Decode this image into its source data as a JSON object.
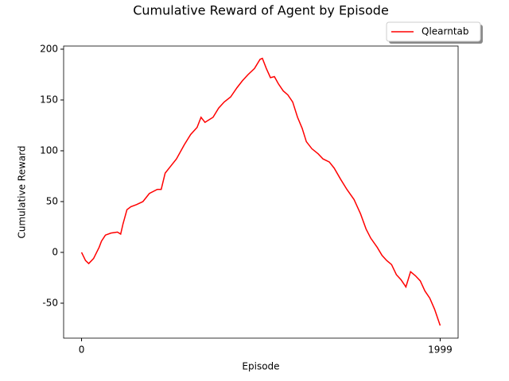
{
  "chart_data": {
    "type": "line",
    "title": "Cumulative Reward of Agent by Episode",
    "xlabel": "Episode",
    "ylabel": "Cumulative Reward",
    "x": [
      0,
      22,
      40,
      67,
      84,
      98,
      111,
      133,
      164,
      200,
      218,
      231,
      253,
      275,
      306,
      342,
      378,
      422,
      444,
      466,
      493,
      529,
      573,
      608,
      644,
      666,
      688,
      733,
      764,
      795,
      831,
      866,
      897,
      928,
      964,
      995,
      1008,
      1030,
      1053,
      1075,
      1097,
      1124,
      1150,
      1177,
      1204,
      1230,
      1253,
      1284,
      1319,
      1346,
      1381,
      1408,
      1444,
      1479,
      1519,
      1555,
      1586,
      1612,
      1648,
      1675,
      1701,
      1728,
      1755,
      1781,
      1808,
      1834,
      1861,
      1888,
      1914,
      1941,
      1968,
      1999
    ],
    "series": [
      {
        "name": "Qlearntab",
        "color": "#ff0000",
        "values": [
          0,
          -8,
          -11,
          -6,
          0,
          5,
          11,
          17,
          19,
          20,
          18,
          28,
          42,
          45,
          47,
          50,
          58,
          62,
          62,
          78,
          84,
          92,
          106,
          116,
          123,
          133,
          128,
          133,
          142,
          148,
          153,
          162,
          169,
          175,
          181,
          190,
          191,
          181,
          172,
          173,
          166,
          159,
          155,
          148,
          133,
          122,
          109,
          102,
          97,
          92,
          89,
          83,
          72,
          62,
          52,
          38,
          23,
          14,
          5,
          -3,
          -8,
          -12,
          -22,
          -27,
          -34,
          -19,
          -23,
          -28,
          -38,
          -45,
          -56,
          -72
        ]
      }
    ],
    "xlim": [
      -99.95,
      2098.95
    ],
    "xticks": [
      0,
      1999
    ],
    "ylim": [
      -84.4,
      203.1
    ],
    "yticks": [
      -50,
      0,
      50,
      100,
      150,
      200
    ],
    "legend": "upper right"
  }
}
